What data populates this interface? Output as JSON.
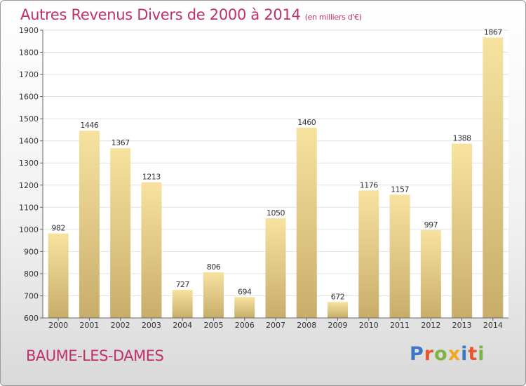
{
  "header": {
    "title": "Autres Revenus Divers de 2000 à 2014",
    "subtitle": "(en milliers d'€)"
  },
  "footer": {
    "city": "BAUME-LES-DAMES",
    "logo_text": "Proxiti"
  },
  "colors": {
    "title": "#c0306a",
    "bar_light": "#f7e2a0",
    "bar_dark": "#c8ad6a",
    "grid": "#e2e2e2",
    "logo_letters": [
      "#3b78c4",
      "#e8552b",
      "#7cb342",
      "#f2a81d",
      "#3b78c4",
      "#e8552b",
      "#7cb342"
    ]
  },
  "chart_data": {
    "type": "bar",
    "title": "Autres Revenus Divers de 2000 à 2014",
    "subtitle": "(en milliers d'€)",
    "categories": [
      "2000",
      "2001",
      "2002",
      "2003",
      "2004",
      "2005",
      "2006",
      "2007",
      "2008",
      "2009",
      "2010",
      "2011",
      "2012",
      "2013",
      "2014"
    ],
    "values": [
      982,
      1446,
      1367,
      1213,
      727,
      806,
      694,
      1050,
      1460,
      672,
      1176,
      1157,
      997,
      1388,
      1867
    ],
    "ylim": [
      600,
      1900
    ],
    "yticks": [
      600,
      700,
      800,
      900,
      1000,
      1100,
      1200,
      1300,
      1400,
      1500,
      1600,
      1700,
      1800,
      1900
    ],
    "grid": true,
    "data_labels": true
  }
}
